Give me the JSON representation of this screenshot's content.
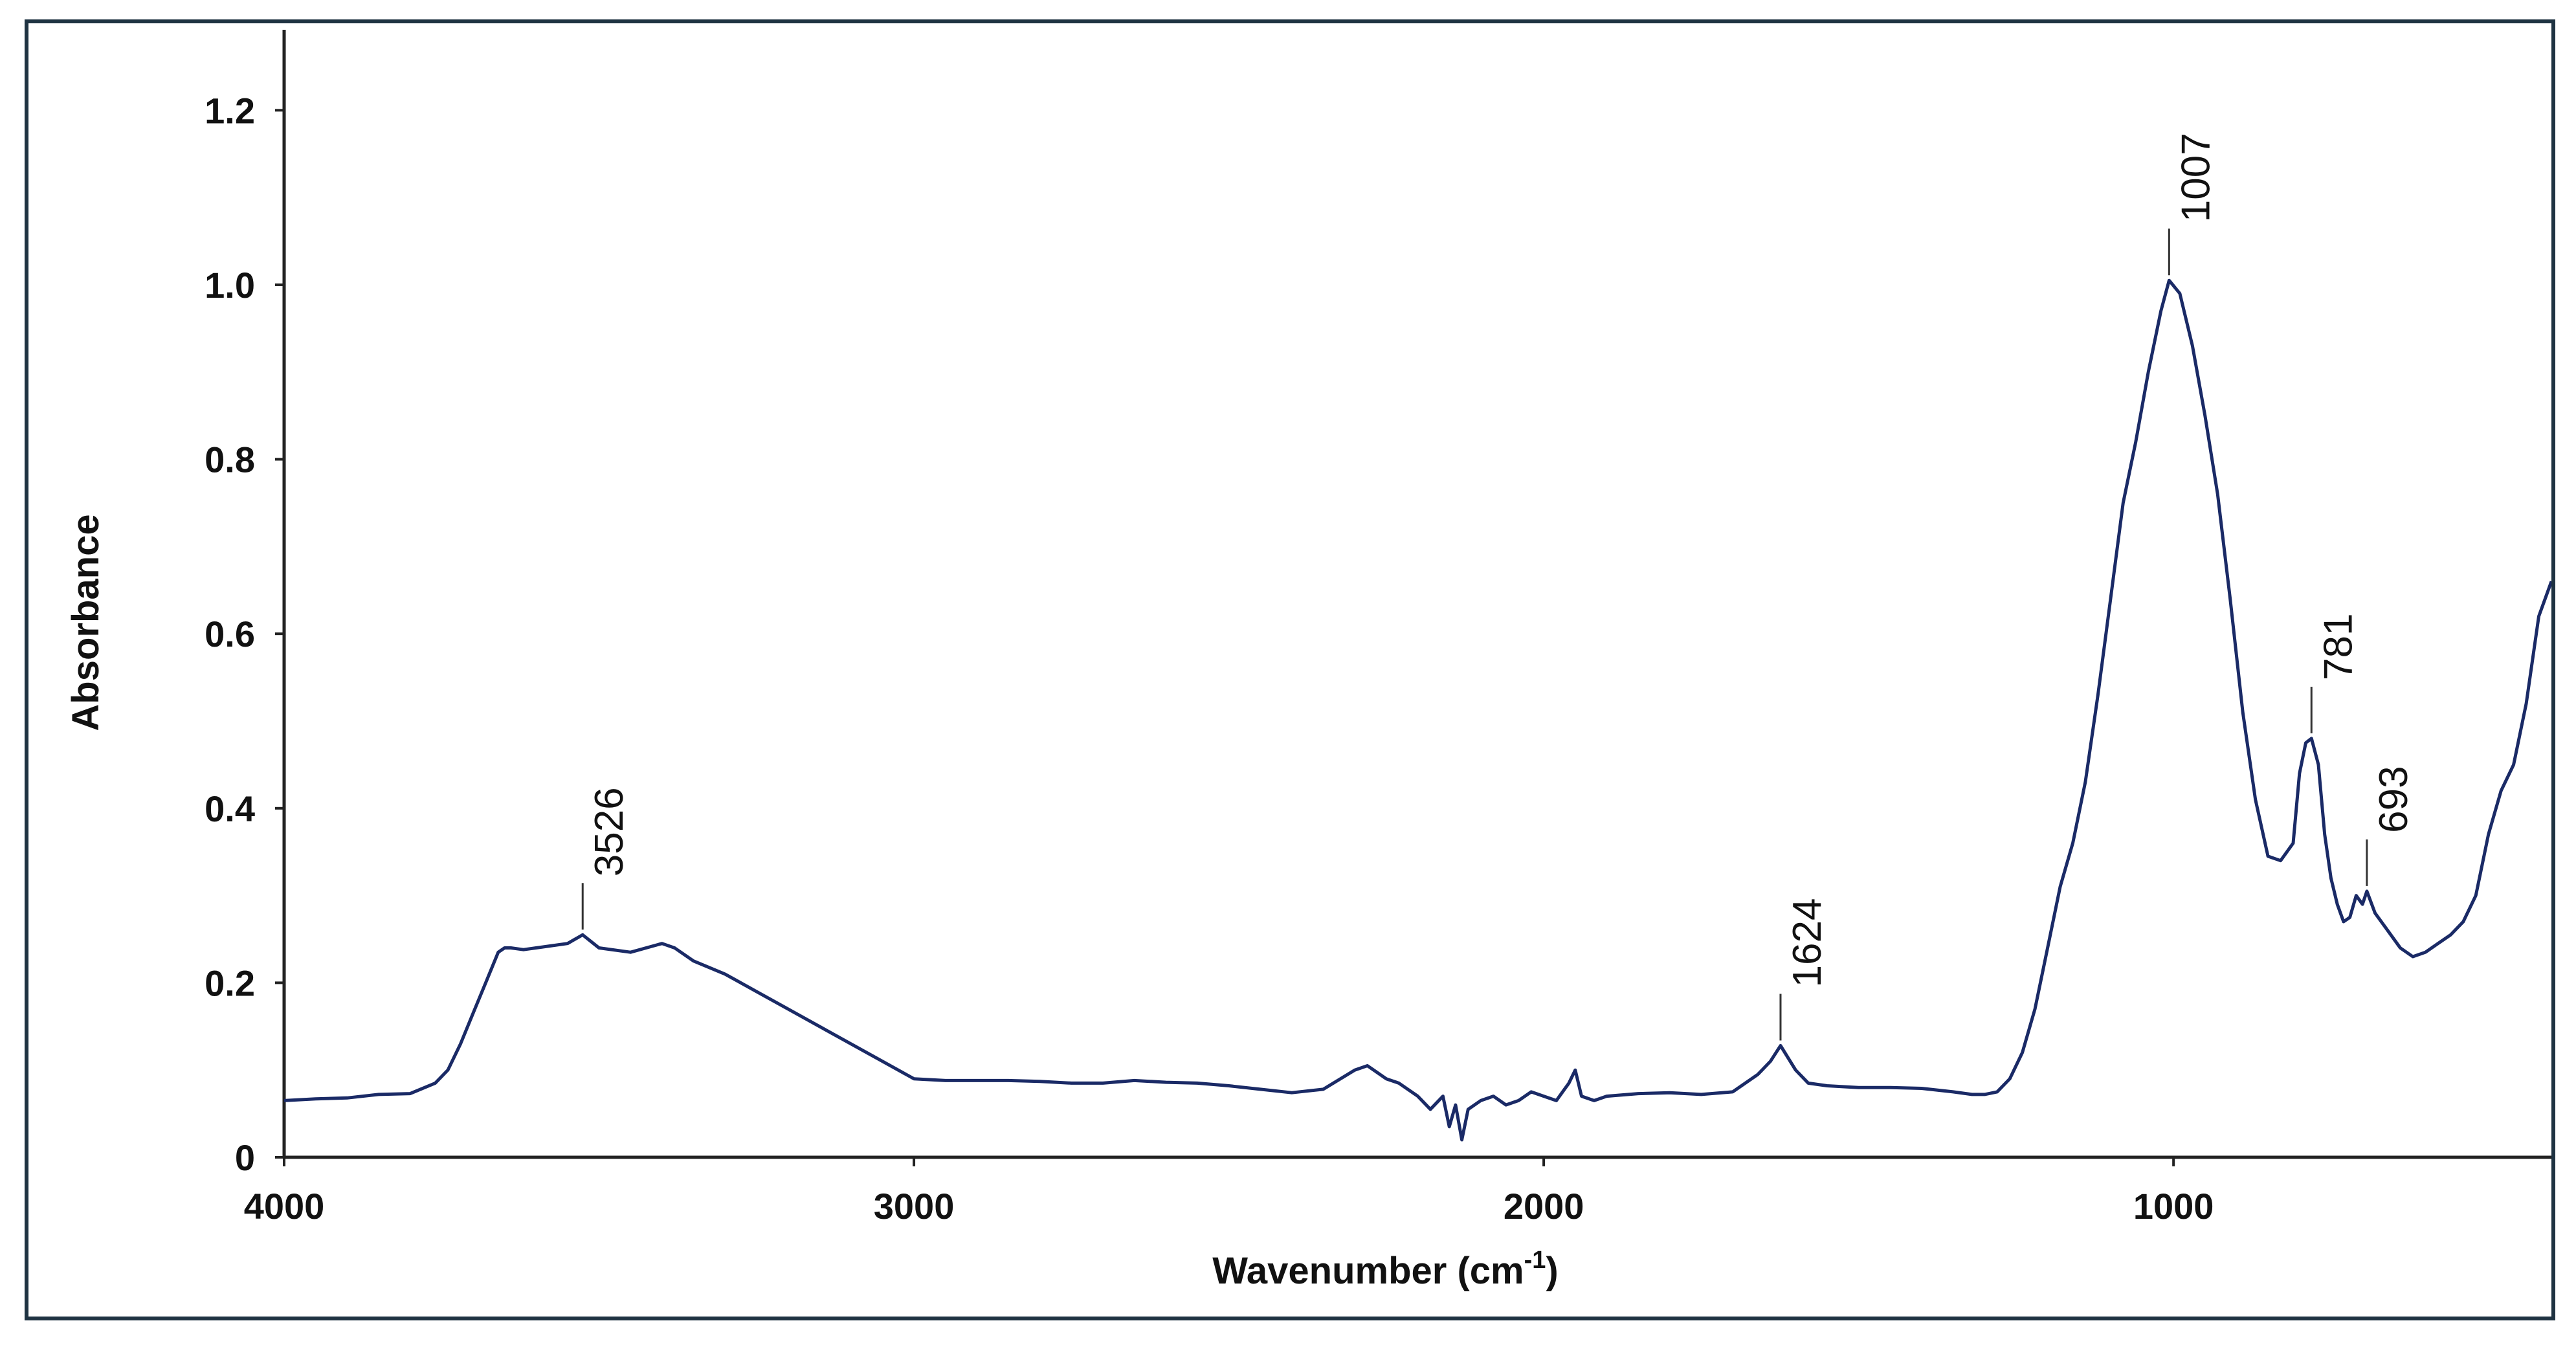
{
  "chart_data": {
    "type": "line",
    "title": "",
    "xlabel": "Wavenumber (cm",
    "xlabel_sup": "-1",
    "xlabel_close": ")",
    "ylabel": "Absorbance",
    "xlim": [
      4000,
      400
    ],
    "ylim": [
      0,
      1.27
    ],
    "x_reversed": true,
    "grid": false,
    "legend": "none",
    "line_color": "#1a2a66",
    "frame_color": "#1f3342",
    "x_ticks": [
      {
        "value": 4000,
        "label": "4000"
      },
      {
        "value": 3000,
        "label": "3000"
      },
      {
        "value": 2000,
        "label": "2000"
      },
      {
        "value": 1000,
        "label": "1000"
      }
    ],
    "y_ticks": [
      {
        "value": 0,
        "label": "0"
      },
      {
        "value": 0.2,
        "label": "0.2"
      },
      {
        "value": 0.4,
        "label": "0.4"
      },
      {
        "value": 0.6,
        "label": "0.6"
      },
      {
        "value": 0.8,
        "label": "0.8"
      },
      {
        "value": 1.0,
        "label": "1.0"
      },
      {
        "value": 1.2,
        "label": "1.2"
      }
    ],
    "peaks": [
      {
        "x": 3526,
        "y": 0.255,
        "label": "3526"
      },
      {
        "x": 1624,
        "y": 0.128,
        "label": "1624"
      },
      {
        "x": 1007,
        "y": 1.005,
        "label": "1007"
      },
      {
        "x": 781,
        "y": 0.48,
        "label": "781"
      },
      {
        "x": 693,
        "y": 0.305,
        "label": "693"
      }
    ],
    "series": [
      {
        "x": [
          4000,
          3950,
          3900,
          3850,
          3800,
          3760,
          3740,
          3720,
          3700,
          3680,
          3660,
          3650,
          3640,
          3620,
          3600,
          3550,
          3526,
          3500,
          3450,
          3400,
          3380,
          3350,
          3300,
          3250,
          3200,
          3150,
          3100,
          3050,
          3000,
          2950,
          2900,
          2850,
          2800,
          2750,
          2700,
          2650,
          2600,
          2550,
          2500,
          2450,
          2400,
          2350,
          2300,
          2280,
          2250,
          2230,
          2200,
          2180,
          2160,
          2150,
          2140,
          2130,
          2120,
          2100,
          2080,
          2060,
          2040,
          2020,
          2000,
          1980,
          1960,
          1950,
          1940,
          1920,
          1900,
          1850,
          1800,
          1750,
          1700,
          1680,
          1660,
          1640,
          1624,
          1600,
          1580,
          1550,
          1500,
          1450,
          1400,
          1350,
          1320,
          1300,
          1280,
          1260,
          1240,
          1220,
          1200,
          1180,
          1160,
          1140,
          1120,
          1100,
          1080,
          1060,
          1040,
          1020,
          1007,
          990,
          970,
          950,
          930,
          910,
          890,
          870,
          850,
          830,
          810,
          800,
          790,
          781,
          770,
          760,
          750,
          740,
          730,
          720,
          710,
          700,
          693,
          680,
          660,
          640,
          620,
          600,
          580,
          560,
          540,
          520,
          500,
          480,
          460,
          440,
          420,
          400
        ],
        "y": [
          0.065,
          0.067,
          0.068,
          0.072,
          0.073,
          0.085,
          0.1,
          0.13,
          0.165,
          0.2,
          0.235,
          0.24,
          0.24,
          0.238,
          0.24,
          0.245,
          0.255,
          0.24,
          0.235,
          0.245,
          0.24,
          0.225,
          0.21,
          0.19,
          0.17,
          0.15,
          0.13,
          0.11,
          0.09,
          0.088,
          0.088,
          0.088,
          0.087,
          0.085,
          0.085,
          0.088,
          0.086,
          0.085,
          0.082,
          0.078,
          0.074,
          0.078,
          0.1,
          0.105,
          0.09,
          0.085,
          0.07,
          0.055,
          0.07,
          0.035,
          0.06,
          0.02,
          0.055,
          0.065,
          0.07,
          0.06,
          0.065,
          0.075,
          0.07,
          0.065,
          0.085,
          0.1,
          0.07,
          0.065,
          0.07,
          0.073,
          0.074,
          0.072,
          0.075,
          0.085,
          0.095,
          0.11,
          0.128,
          0.1,
          0.085,
          0.082,
          0.08,
          0.08,
          0.079,
          0.075,
          0.072,
          0.072,
          0.075,
          0.09,
          0.12,
          0.17,
          0.24,
          0.31,
          0.36,
          0.43,
          0.53,
          0.64,
          0.75,
          0.82,
          0.9,
          0.97,
          1.005,
          0.99,
          0.93,
          0.85,
          0.76,
          0.64,
          0.51,
          0.41,
          0.345,
          0.34,
          0.36,
          0.44,
          0.475,
          0.48,
          0.45,
          0.37,
          0.32,
          0.29,
          0.27,
          0.275,
          0.3,
          0.29,
          0.305,
          0.28,
          0.26,
          0.24,
          0.23,
          0.235,
          0.245,
          0.255,
          0.27,
          0.3,
          0.37,
          0.42,
          0.45,
          0.52,
          0.62,
          0.66
        ]
      }
    ]
  }
}
